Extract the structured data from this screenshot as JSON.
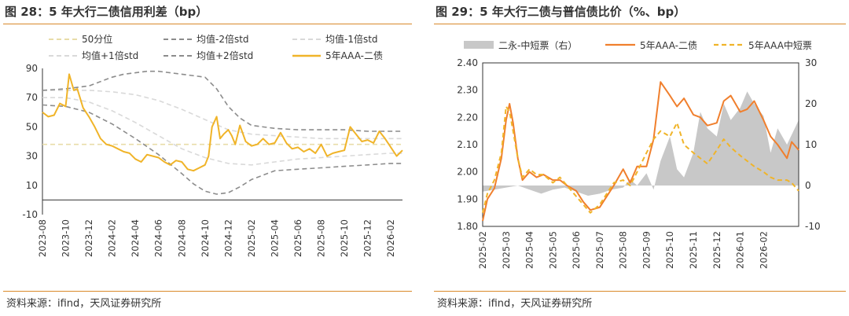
{
  "charts": {
    "left": {
      "title": "图 28：5 年大行二债信用利差（bp）",
      "source": "资料来源：ifind，天风证券研究所"
    },
    "right": {
      "title": "图 29：5 年大行二债与普信债比价（%、bp）",
      "source": "资料来源：ifind，天风证券研究所"
    }
  },
  "chart_data": [
    {
      "type": "line",
      "title": "图 28：5 年大行二债信用利差（bp）",
      "unit": "bp",
      "ylim": [
        -10,
        90
      ],
      "yticks": [
        -10,
        10,
        30,
        50,
        70,
        90
      ],
      "xticks": [
        "2023-08",
        "2023-10",
        "2023-12",
        "2024-02",
        "2024-04",
        "2024-06",
        "2024-08",
        "2024-10",
        "2024-12",
        "2025-02",
        "2025-04",
        "2025-06",
        "2025-08",
        "2025-10",
        "2025-12",
        "2026-02"
      ],
      "xlim": [
        0,
        31
      ],
      "legend": "top",
      "series": [
        {
          "name": "50分位",
          "color": "#e8dca8",
          "style": "dash",
          "x": [
            0,
            31
          ],
          "y": [
            38,
            38
          ]
        },
        {
          "name": "均值-2倍std",
          "color": "#8c8c8c",
          "style": "dash",
          "x": [
            0,
            2,
            4,
            6,
            8,
            10,
            12,
            13,
            14,
            15,
            16,
            17,
            18,
            19,
            20,
            22,
            24,
            26,
            28,
            30,
            31
          ],
          "y": [
            65,
            64,
            60,
            52,
            42,
            31,
            18,
            11,
            6,
            4,
            5,
            9,
            14,
            17,
            20,
            21,
            22,
            23,
            24,
            25,
            25
          ]
        },
        {
          "name": "均值-1倍std",
          "color": "#d9d9d9",
          "style": "dash",
          "x": [
            0,
            2,
            4,
            6,
            8,
            10,
            12,
            14,
            16,
            18,
            20,
            22,
            24,
            26,
            28,
            30,
            31
          ],
          "y": [
            70,
            70,
            67,
            61,
            53,
            44,
            35,
            29,
            25,
            24,
            26,
            28,
            29,
            30,
            31,
            32,
            32
          ]
        },
        {
          "name": "均值+1倍std",
          "color": "#d9d9d9",
          "style": "dash",
          "x": [
            0,
            2,
            4,
            6,
            8,
            10,
            12,
            14,
            16,
            18,
            20,
            22,
            24,
            26,
            28,
            30,
            31
          ],
          "y": [
            75,
            75,
            75,
            74,
            72,
            68,
            62,
            55,
            48,
            45,
            44,
            43,
            42,
            42,
            42,
            42,
            42
          ]
        },
        {
          "name": "均值+2倍std",
          "color": "#8c8c8c",
          "style": "dash",
          "x": [
            0,
            2,
            4,
            6,
            7,
            8,
            9,
            10,
            11,
            12,
            14,
            15,
            16,
            17,
            18,
            20,
            22,
            24,
            26,
            28,
            30,
            31
          ],
          "y": [
            75,
            76,
            78,
            84,
            86,
            87,
            88,
            88,
            87,
            86,
            84,
            76,
            64,
            56,
            51,
            49,
            48,
            48,
            48,
            47,
            47,
            47
          ]
        },
        {
          "name": "5年AAA-二债",
          "color": "#f0b429",
          "style": "solid",
          "x": [
            0,
            0.5,
            1,
            1.5,
            2,
            2.3,
            2.7,
            3,
            3.5,
            4,
            4.5,
            5,
            5.5,
            6,
            6.5,
            7,
            7.5,
            8,
            8.5,
            9,
            9.5,
            10,
            10.5,
            11,
            11.5,
            12,
            12.5,
            13,
            13.5,
            14,
            14.3,
            14.6,
            15,
            15.3,
            15.6,
            16,
            16.3,
            16.6,
            17,
            17.5,
            18,
            18.5,
            19,
            19.5,
            20,
            20.5,
            21,
            21.5,
            22,
            22.5,
            23,
            23.5,
            24,
            24.5,
            25,
            25.5,
            26,
            26.5,
            27,
            27.5,
            28,
            28.5,
            29,
            29.5,
            30,
            30.5,
            31
          ],
          "y": [
            60,
            57,
            58,
            66,
            64,
            86,
            75,
            76,
            63,
            57,
            50,
            42,
            38,
            37,
            35,
            33,
            32,
            28,
            26,
            31,
            30,
            29,
            26,
            24,
            27,
            26,
            21,
            20,
            22,
            24,
            30,
            50,
            57,
            42,
            45,
            48,
            44,
            38,
            51,
            40,
            37,
            38,
            42,
            38,
            39,
            46,
            39,
            35,
            36,
            33,
            35,
            32,
            38,
            30,
            32,
            33,
            34,
            50,
            45,
            40,
            41,
            39,
            47,
            42,
            36,
            30,
            34
          ]
        }
      ]
    },
    {
      "type": "line",
      "title": "图 29：5 年大行二债与普信债比价（%、bp）",
      "ylim": [
        1.8,
        2.4
      ],
      "yticks": [
        1.8,
        1.9,
        2.0,
        2.1,
        2.2,
        2.3,
        2.4
      ],
      "ylim_right": [
        -10,
        30
      ],
      "yticks_right": [
        -10,
        0,
        10,
        20,
        30
      ],
      "xticks": [
        "2025-02",
        "2025-03",
        "2025-04",
        "2025-05",
        "2025-06",
        "2025-07",
        "2025-08",
        "2025-09",
        "2025-10",
        "2025-11",
        "2025-12",
        "2026-01",
        "2026-02"
      ],
      "xlim": [
        0,
        13.5
      ],
      "legend": "top",
      "series": [
        {
          "name": "二永-中短票（右）",
          "type": "area",
          "axis": "right",
          "color": "#c8c8c8",
          "x": [
            0,
            0.5,
            1,
            1.5,
            2,
            2.5,
            3,
            3.5,
            4,
            4.5,
            5,
            5.5,
            6,
            6.3,
            6.6,
            7,
            7.3,
            7.6,
            8,
            8.3,
            8.6,
            9,
            9.3,
            9.6,
            10,
            10.3,
            10.6,
            11,
            11.3,
            11.6,
            12,
            12.3,
            12.6,
            13,
            13.5
          ],
          "y": [
            -1.5,
            -1,
            -0.5,
            0,
            -1,
            -2,
            -1,
            -0.5,
            -1.5,
            -2.5,
            -2,
            -1,
            -0.5,
            1.5,
            0,
            3,
            -1,
            6,
            12,
            4,
            2,
            8,
            18,
            14,
            12,
            20,
            16,
            19,
            23,
            20,
            17,
            8,
            14,
            10,
            16
          ]
        },
        {
          "name": "5年AAA-二债",
          "axis": "left",
          "color": "#f07f2d",
          "style": "solid",
          "x": [
            0,
            0.2,
            0.5,
            0.8,
            1,
            1.15,
            1.3,
            1.5,
            1.7,
            2,
            2.3,
            2.6,
            3,
            3.3,
            3.6,
            4,
            4.3,
            4.6,
            5,
            5.3,
            5.6,
            6,
            6.3,
            6.6,
            7,
            7.3,
            7.6,
            8,
            8.3,
            8.6,
            9,
            9.3,
            9.6,
            10,
            10.3,
            10.6,
            11,
            11.3,
            11.6,
            12,
            12.3,
            12.6,
            13,
            13.2,
            13.5
          ],
          "y": [
            1.82,
            1.9,
            1.94,
            2.05,
            2.19,
            2.25,
            2.18,
            2.05,
            1.97,
            2.0,
            1.98,
            1.99,
            1.97,
            1.97,
            1.95,
            1.93,
            1.89,
            1.86,
            1.87,
            1.91,
            1.95,
            2.01,
            1.96,
            2.02,
            2.02,
            2.12,
            2.33,
            2.28,
            2.24,
            2.27,
            2.21,
            2.2,
            2.17,
            2.18,
            2.26,
            2.28,
            2.22,
            2.23,
            2.26,
            2.19,
            2.13,
            2.1,
            2.05,
            2.11,
            2.08
          ]
        },
        {
          "name": "5年AAA中短票",
          "axis": "left",
          "color": "#f0b429",
          "style": "dash",
          "x": [
            0,
            0.2,
            0.5,
            0.8,
            1,
            1.15,
            1.3,
            1.5,
            1.7,
            2,
            2.3,
            2.6,
            3,
            3.3,
            3.6,
            4,
            4.3,
            4.6,
            5,
            5.3,
            5.6,
            6,
            6.3,
            6.6,
            7,
            7.3,
            7.6,
            8,
            8.3,
            8.6,
            9,
            9.3,
            9.6,
            10,
            10.3,
            10.6,
            11,
            11.3,
            11.6,
            12,
            12.3,
            12.6,
            13,
            13.2,
            13.5
          ],
          "y": [
            1.85,
            1.92,
            1.97,
            2.07,
            2.24,
            2.22,
            2.15,
            2.05,
            1.98,
            2.01,
            1.99,
            1.99,
            1.96,
            1.98,
            1.95,
            1.91,
            1.88,
            1.85,
            1.88,
            1.92,
            1.96,
            1.97,
            1.95,
            2.0,
            2.07,
            2.12,
            2.15,
            2.13,
            2.18,
            2.1,
            2.07,
            2.05,
            2.03,
            2.08,
            2.12,
            2.09,
            2.06,
            2.04,
            2.02,
            2.0,
            1.98,
            1.97,
            1.97,
            1.96,
            1.93
          ]
        }
      ]
    }
  ]
}
